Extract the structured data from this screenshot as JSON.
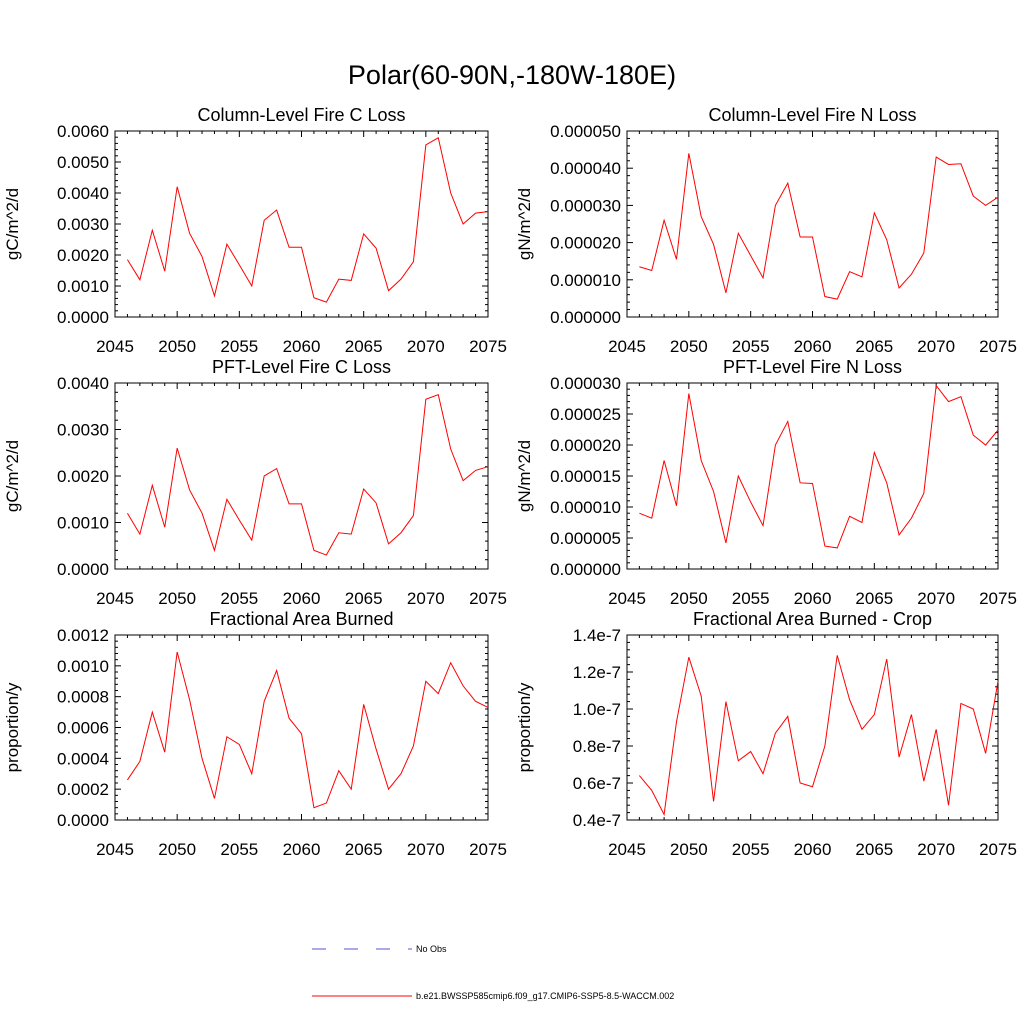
{
  "figure_title": "Polar(60-90N,-180W-180E)",
  "legend": {
    "entries": [
      {
        "label": "No Obs",
        "color": "#5555cc",
        "style": "dashed"
      },
      {
        "label": "b.e21.BWSSP585cmip6.f09_g17.CMIP6-SSP5-8.5-WACCM.002",
        "color": "#ff0000",
        "style": "solid"
      }
    ]
  },
  "chart_data": [
    {
      "type": "line",
      "title": "Column-Level Fire C Loss",
      "xlabel": "",
      "ylabel": "gC/m^2/d",
      "xlim": [
        2045,
        2075
      ],
      "ylim": [
        0,
        0.006
      ],
      "xticks": [
        2045,
        2050,
        2055,
        2060,
        2065,
        2070,
        2075
      ],
      "yticks": [
        0,
        0.001,
        0.002,
        0.003,
        0.004,
        0.005,
        0.006
      ],
      "ytick_labels": [
        "0.0000",
        "0.0010",
        "0.0020",
        "0.0030",
        "0.0040",
        "0.0050",
        "0.0060"
      ],
      "series": [
        {
          "name": "b.e21.BWSSP585cmip6.f09_g17.CMIP6-SSP5-8.5-WACCM.002",
          "color": "#ff0000",
          "x": [
            2046,
            2047,
            2048,
            2049,
            2050,
            2051,
            2052,
            2053,
            2054,
            2055,
            2056,
            2057,
            2058,
            2059,
            2060,
            2061,
            2062,
            2063,
            2064,
            2065,
            2066,
            2067,
            2068,
            2069,
            2070,
            2071,
            2072,
            2073,
            2074,
            2075
          ],
          "values": [
            0.00185,
            0.0012,
            0.0028,
            0.00148,
            0.0042,
            0.0027,
            0.00195,
            0.00068,
            0.00235,
            0.00168,
            0.001,
            0.00312,
            0.00345,
            0.00225,
            0.00225,
            0.00062,
            0.00048,
            0.00122,
            0.00118,
            0.00268,
            0.00222,
            0.00085,
            0.00122,
            0.00178,
            0.00555,
            0.00578,
            0.004,
            0.003,
            0.00335,
            0.0034
          ]
        }
      ]
    },
    {
      "type": "line",
      "title": "Column-Level Fire N Loss",
      "xlabel": "",
      "ylabel": "gN/m^2/d",
      "xlim": [
        2045,
        2075
      ],
      "ylim": [
        0,
        5e-05
      ],
      "xticks": [
        2045,
        2050,
        2055,
        2060,
        2065,
        2070,
        2075
      ],
      "yticks": [
        0,
        1e-05,
        2e-05,
        3e-05,
        4e-05,
        5e-05
      ],
      "ytick_labels": [
        "0.000000",
        "0.000010",
        "0.000020",
        "0.000030",
        "0.000040",
        "0.000050"
      ],
      "series": [
        {
          "name": "b.e21.BWSSP585cmip6.f09_g17.CMIP6-SSP5-8.5-WACCM.002",
          "color": "#ff0000",
          "x": [
            2046,
            2047,
            2048,
            2049,
            2050,
            2051,
            2052,
            2053,
            2054,
            2055,
            2056,
            2057,
            2058,
            2059,
            2060,
            2061,
            2062,
            2063,
            2064,
            2065,
            2066,
            2067,
            2068,
            2069,
            2070,
            2071,
            2072,
            2073,
            2074,
            2075
          ],
          "values": [
            1.35e-05,
            1.25e-05,
            2.6e-05,
            1.55e-05,
            4.4e-05,
            2.7e-05,
            1.95e-05,
            6.5e-06,
            2.25e-05,
            1.65e-05,
            1.05e-05,
            3e-05,
            3.6e-05,
            2.15e-05,
            2.15e-05,
            5.5e-06,
            4.8e-06,
            1.22e-05,
            1.08e-05,
            2.8e-05,
            2.08e-05,
            7.8e-06,
            1.15e-05,
            1.72e-05,
            4.3e-05,
            4.1e-05,
            4.12e-05,
            3.25e-05,
            3e-05,
            3.22e-05
          ]
        }
      ]
    },
    {
      "type": "line",
      "title": "PFT-Level Fire C Loss",
      "xlabel": "",
      "ylabel": "gC/m^2/d",
      "xlim": [
        2045,
        2075
      ],
      "ylim": [
        0,
        0.004
      ],
      "xticks": [
        2045,
        2050,
        2055,
        2060,
        2065,
        2070,
        2075
      ],
      "yticks": [
        0,
        0.001,
        0.002,
        0.003,
        0.004
      ],
      "ytick_labels": [
        "0.0000",
        "0.0010",
        "0.0020",
        "0.0030",
        "0.0040"
      ],
      "series": [
        {
          "name": "b.e21.BWSSP585cmip6.f09_g17.CMIP6-SSP5-8.5-WACCM.002",
          "color": "#ff0000",
          "x": [
            2046,
            2047,
            2048,
            2049,
            2050,
            2051,
            2052,
            2053,
            2054,
            2055,
            2056,
            2057,
            2058,
            2059,
            2060,
            2061,
            2062,
            2063,
            2064,
            2065,
            2066,
            2067,
            2068,
            2069,
            2070,
            2071,
            2072,
            2073,
            2074,
            2075
          ],
          "values": [
            0.0012,
            0.00075,
            0.0018,
            0.0009,
            0.0026,
            0.0017,
            0.0012,
            0.0004,
            0.0015,
            0.00105,
            0.00062,
            0.002,
            0.00216,
            0.0014,
            0.0014,
            0.0004,
            0.0003,
            0.00078,
            0.00075,
            0.00172,
            0.00142,
            0.00054,
            0.00078,
            0.00115,
            0.00365,
            0.00375,
            0.00258,
            0.0019,
            0.00212,
            0.0022
          ]
        }
      ]
    },
    {
      "type": "line",
      "title": "PFT-Level Fire N Loss",
      "xlabel": "",
      "ylabel": "gN/m^2/d",
      "xlim": [
        2045,
        2075
      ],
      "ylim": [
        0,
        3e-05
      ],
      "xticks": [
        2045,
        2050,
        2055,
        2060,
        2065,
        2070,
        2075
      ],
      "yticks": [
        0,
        5e-06,
        1e-05,
        1.5e-05,
        2e-05,
        2.5e-05,
        3e-05
      ],
      "ytick_labels": [
        "0.000000",
        "0.000005",
        "0.000010",
        "0.000015",
        "0.000020",
        "0.000025",
        "0.000030"
      ],
      "series": [
        {
          "name": "b.e21.BWSSP585cmip6.f09_g17.CMIP6-SSP5-8.5-WACCM.002",
          "color": "#ff0000",
          "x": [
            2046,
            2047,
            2048,
            2049,
            2050,
            2051,
            2052,
            2053,
            2054,
            2055,
            2056,
            2057,
            2058,
            2059,
            2060,
            2061,
            2062,
            2063,
            2064,
            2065,
            2066,
            2067,
            2068,
            2069,
            2070,
            2071,
            2072,
            2073,
            2074,
            2075
          ],
          "values": [
            9e-06,
            8.2e-06,
            1.75e-05,
            1.02e-05,
            2.83e-05,
            1.75e-05,
            1.25e-05,
            4.2e-06,
            1.5e-05,
            1.08e-05,
            7e-06,
            2e-05,
            2.38e-05,
            1.39e-05,
            1.38e-05,
            3.7e-06,
            3.4e-06,
            8.5e-06,
            7.5e-06,
            1.88e-05,
            1.39e-05,
            5.5e-06,
            8.2e-06,
            1.22e-05,
            2.96e-05,
            2.7e-05,
            2.78e-05,
            2.16e-05,
            2e-05,
            2.24e-05
          ]
        }
      ]
    },
    {
      "type": "line",
      "title": "Fractional Area Burned",
      "xlabel": "",
      "ylabel": "proportion/y",
      "xlim": [
        2045,
        2075
      ],
      "ylim": [
        0,
        0.0012
      ],
      "xticks": [
        2045,
        2050,
        2055,
        2060,
        2065,
        2070,
        2075
      ],
      "yticks": [
        0,
        0.0002,
        0.0004,
        0.0006,
        0.0008,
        0.001,
        0.0012
      ],
      "ytick_labels": [
        "0.0000",
        "0.0002",
        "0.0004",
        "0.0006",
        "0.0008",
        "0.0010",
        "0.0012"
      ],
      "series": [
        {
          "name": "b.e21.BWSSP585cmip6.f09_g17.CMIP6-SSP5-8.5-WACCM.002",
          "color": "#ff0000",
          "x": [
            2046,
            2047,
            2048,
            2049,
            2050,
            2051,
            2052,
            2053,
            2054,
            2055,
            2056,
            2057,
            2058,
            2059,
            2060,
            2061,
            2062,
            2063,
            2064,
            2065,
            2066,
            2067,
            2068,
            2069,
            2070,
            2071,
            2072,
            2073,
            2074,
            2075
          ],
          "values": [
            0.00026,
            0.00038,
            0.0007,
            0.00044,
            0.00109,
            0.00078,
            0.0004,
            0.00014,
            0.00054,
            0.00049,
            0.0003,
            0.00077,
            0.00097,
            0.00066,
            0.00056,
            8e-05,
            0.00011,
            0.00032,
            0.0002,
            0.00075,
            0.00046,
            0.0002,
            0.0003,
            0.00048,
            0.0009,
            0.00082,
            0.00102,
            0.00087,
            0.00077,
            0.00073
          ]
        }
      ]
    },
    {
      "type": "line",
      "title": "Fractional Area Burned - Crop",
      "xlabel": "",
      "ylabel": "proportion/y",
      "xlim": [
        2045,
        2075
      ],
      "ylim": [
        4e-08,
        1.4e-07
      ],
      "xticks": [
        2045,
        2050,
        2055,
        2060,
        2065,
        2070,
        2075
      ],
      "yticks": [
        4e-08,
        6e-08,
        8e-08,
        1e-07,
        1.2e-07,
        1.4e-07
      ],
      "ytick_labels": [
        "0.4e-7",
        "0.6e-7",
        "0.8e-7",
        "1.0e-7",
        "1.2e-7",
        "1.4e-7"
      ],
      "series": [
        {
          "name": "b.e21.BWSSP585cmip6.f09_g17.CMIP6-SSP5-8.5-WACCM.002",
          "color": "#ff0000",
          "x": [
            2046,
            2047,
            2048,
            2049,
            2050,
            2051,
            2052,
            2053,
            2054,
            2055,
            2056,
            2057,
            2058,
            2059,
            2060,
            2061,
            2062,
            2063,
            2064,
            2065,
            2066,
            2067,
            2068,
            2069,
            2070,
            2071,
            2072,
            2073,
            2074,
            2075
          ],
          "values": [
            6.4e-08,
            5.6e-08,
            4.3e-08,
            9.3e-08,
            1.28e-07,
            1.07e-07,
            5e-08,
            1.04e-07,
            7.2e-08,
            7.7e-08,
            6.5e-08,
            8.7e-08,
            9.6e-08,
            6e-08,
            5.8e-08,
            8e-08,
            1.29e-07,
            1.05e-07,
            8.9e-08,
            9.7e-08,
            1.27e-07,
            7.4e-08,
            9.7e-08,
            6.1e-08,
            8.9e-08,
            4.8e-08,
            1.03e-07,
            1e-07,
            7.6e-08,
            1.15e-07
          ]
        }
      ]
    }
  ]
}
